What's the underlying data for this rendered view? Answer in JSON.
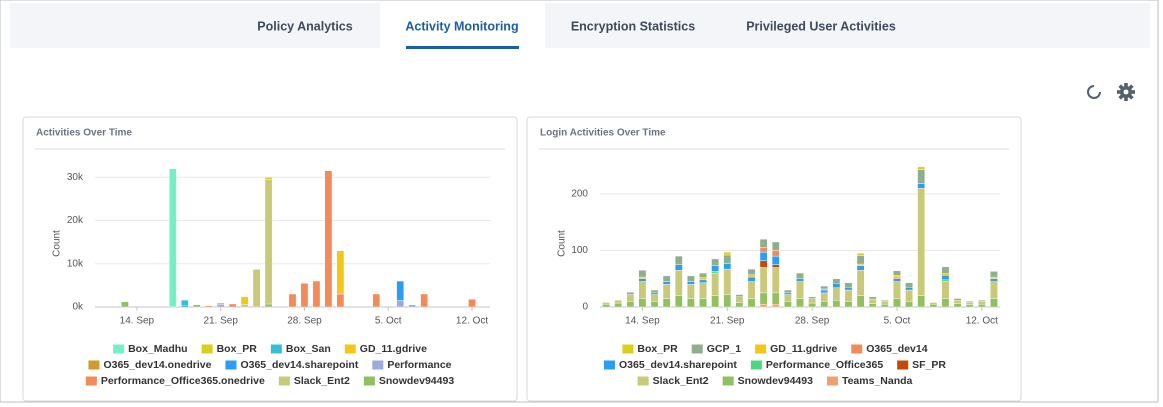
{
  "tabs": [
    "Policy Analytics",
    "Activity Monitoring",
    "Encryption Statistics",
    "Privileged User Activities"
  ],
  "chart_data": [
    {
      "type": "stacked-bar",
      "title": "Activities Over Time",
      "y_label": "Count",
      "categories": [
        null,
        null,
        null,
        "14. Sep",
        null,
        null,
        null,
        null,
        null,
        null,
        "21. Sep",
        null,
        null,
        null,
        null,
        null,
        null,
        "28. Sep",
        null,
        null,
        null,
        null,
        null,
        null,
        "5. Oct",
        null,
        null,
        null,
        null,
        null,
        null,
        "12. Oct",
        null
      ],
      "ylim": [
        0,
        34000
      ],
      "yticks": [
        {
          "value": 0,
          "label": "0k"
        },
        {
          "value": 10000,
          "label": "10k"
        },
        {
          "value": 20000,
          "label": "20k"
        },
        {
          "value": 30000,
          "label": "30k"
        }
      ],
      "grid": true,
      "series": [
        {
          "name": "Box_Madhu",
          "color": "#74f0c4",
          "values": [
            null,
            null,
            null,
            null,
            null,
            null,
            32000,
            null,
            null,
            null,
            null,
            null,
            null,
            null,
            null,
            null,
            null,
            null,
            null,
            null,
            null,
            null,
            null,
            null,
            null,
            null,
            null,
            null,
            null,
            null,
            null,
            null,
            null
          ]
        },
        {
          "name": "Box_PR",
          "color": "#dccf1a",
          "values": [
            null,
            null,
            null,
            null,
            null,
            null,
            null,
            null,
            null,
            null,
            null,
            null,
            null,
            null,
            500,
            null,
            null,
            null,
            null,
            null,
            null,
            null,
            null,
            null,
            null,
            null,
            null,
            null,
            null,
            null,
            null,
            null,
            null
          ]
        },
        {
          "name": "Box_San",
          "color": "#33bfd6",
          "values": [
            null,
            null,
            null,
            null,
            null,
            null,
            null,
            1200,
            null,
            null,
            null,
            null,
            null,
            null,
            null,
            null,
            null,
            null,
            null,
            null,
            null,
            null,
            null,
            null,
            null,
            null,
            null,
            null,
            null,
            null,
            null,
            null,
            null
          ]
        },
        {
          "name": "GD_11.gdrive",
          "color": "#f5c518",
          "values": [
            null,
            null,
            null,
            null,
            null,
            null,
            null,
            null,
            null,
            null,
            null,
            null,
            1800,
            null,
            null,
            null,
            null,
            null,
            null,
            null,
            10000,
            null,
            null,
            null,
            null,
            null,
            null,
            null,
            null,
            null,
            null,
            null,
            null
          ]
        },
        {
          "name": "O365_dev14.onedrive",
          "color": "#d29a2e",
          "values": [
            null,
            null,
            null,
            null,
            null,
            null,
            null,
            null,
            null,
            null,
            300,
            null,
            null,
            null,
            null,
            null,
            null,
            null,
            null,
            null,
            null,
            null,
            null,
            null,
            null,
            null,
            null,
            null,
            null,
            null,
            null,
            null,
            null
          ]
        },
        {
          "name": "O365_dev14.sharepoint",
          "color": "#2a9df4",
          "values": [
            null,
            null,
            null,
            null,
            null,
            null,
            null,
            400,
            null,
            null,
            null,
            null,
            null,
            null,
            null,
            null,
            null,
            null,
            null,
            null,
            null,
            null,
            null,
            null,
            null,
            4500,
            null,
            null,
            null,
            null,
            null,
            null,
            null
          ]
        },
        {
          "name": "Performance",
          "color": "#9cabd8",
          "values": [
            null,
            null,
            null,
            null,
            null,
            null,
            null,
            null,
            null,
            null,
            600,
            null,
            null,
            null,
            null,
            null,
            null,
            null,
            null,
            null,
            null,
            null,
            null,
            null,
            null,
            1500,
            500,
            null,
            null,
            null,
            null,
            null,
            null
          ]
        },
        {
          "name": "Performance_Office365.onedrive",
          "color": "#f28b59",
          "values": [
            null,
            null,
            null,
            null,
            null,
            null,
            null,
            null,
            null,
            300,
            null,
            700,
            null,
            null,
            null,
            null,
            3000,
            5500,
            6000,
            31500,
            3000,
            null,
            null,
            3000,
            null,
            null,
            null,
            3000,
            null,
            null,
            null,
            1800,
            null
          ]
        },
        {
          "name": "Slack_Ent2",
          "color": "#c9c97a",
          "values": [
            null,
            null,
            null,
            null,
            null,
            null,
            null,
            null,
            null,
            null,
            null,
            null,
            600,
            8700,
            28800,
            null,
            null,
            null,
            null,
            null,
            null,
            null,
            null,
            null,
            null,
            null,
            null,
            null,
            null,
            null,
            null,
            null,
            null
          ]
        },
        {
          "name": "Snowdev94493",
          "color": "#91c060",
          "values": [
            null,
            null,
            1200,
            null,
            null,
            null,
            null,
            null,
            500,
            null,
            null,
            null,
            null,
            null,
            700,
            null,
            null,
            null,
            null,
            null,
            null,
            null,
            null,
            null,
            null,
            null,
            null,
            null,
            null,
            null,
            null,
            null,
            null
          ]
        }
      ]
    },
    {
      "type": "stacked-bar",
      "title": "Login Activities Over Time",
      "y_label": "Count",
      "categories": [
        null,
        null,
        null,
        "14. Sep",
        null,
        null,
        null,
        null,
        null,
        null,
        "21. Sep",
        null,
        null,
        null,
        null,
        null,
        null,
        "28. Sep",
        null,
        null,
        null,
        null,
        null,
        null,
        "5. Oct",
        null,
        null,
        null,
        null,
        null,
        null,
        "12. Oct",
        null
      ],
      "ylim": [
        0,
        260
      ],
      "yticks": [
        0,
        100,
        200
      ],
      "grid": true,
      "series": [
        {
          "name": "Box_PR",
          "color": "#dccf1a",
          "values": [
            null,
            null,
            null,
            null,
            null,
            null,
            null,
            null,
            null,
            null,
            5,
            null,
            null,
            null,
            null,
            null,
            null,
            null,
            null,
            null,
            null,
            4,
            null,
            null,
            null,
            null,
            5,
            null,
            null,
            null,
            null,
            null,
            null
          ]
        },
        {
          "name": "GCP_1",
          "color": "#8fae8b",
          "values": [
            null,
            null,
            4,
            12,
            5,
            10,
            15,
            10,
            8,
            12,
            15,
            4,
            10,
            15,
            15,
            5,
            10,
            3,
            5,
            8,
            8,
            15,
            4,
            2,
            8,
            8,
            25,
            null,
            12,
            3,
            2,
            2,
            10
          ]
        },
        {
          "name": "GD_11.gdrive",
          "color": "#f5c518",
          "values": [
            null,
            null,
            null,
            3,
            null,
            null,
            null,
            null,
            4,
            null,
            null,
            null,
            4,
            null,
            null,
            null,
            null,
            null,
            null,
            null,
            null,
            3,
            null,
            null,
            3,
            null,
            null,
            null,
            3,
            null,
            null,
            null,
            3
          ]
        },
        {
          "name": "O365_dev14",
          "color": "#f28b59",
          "values": [
            null,
            null,
            null,
            null,
            null,
            null,
            null,
            null,
            null,
            null,
            null,
            null,
            null,
            8,
            10,
            null,
            null,
            null,
            2,
            null,
            null,
            null,
            null,
            null,
            3,
            null,
            null,
            null,
            null,
            null,
            null,
            null,
            null
          ]
        },
        {
          "name": "O365_dev14.sharepoint",
          "color": "#2a9df4",
          "values": [
            null,
            null,
            null,
            5,
            3,
            5,
            10,
            5,
            5,
            10,
            10,
            null,
            8,
            15,
            15,
            3,
            5,
            null,
            5,
            8,
            5,
            8,
            null,
            null,
            5,
            5,
            8,
            null,
            8,
            null,
            null,
            null,
            5
          ]
        },
        {
          "name": "Performance_Office365",
          "color": "#4cd683",
          "values": [
            null,
            null,
            null,
            null,
            null,
            null,
            null,
            null,
            null,
            3,
            null,
            null,
            null,
            null,
            null,
            null,
            null,
            null,
            null,
            null,
            null,
            null,
            null,
            null,
            null,
            null,
            null,
            null,
            3,
            null,
            null,
            null,
            null
          ]
        },
        {
          "name": "SF_PR",
          "color": "#c4480b",
          "values": [
            null,
            null,
            null,
            null,
            null,
            null,
            null,
            null,
            null,
            null,
            null,
            null,
            null,
            12,
            5,
            null,
            null,
            null,
            null,
            null,
            null,
            null,
            null,
            null,
            null,
            null,
            null,
            null,
            null,
            null,
            null,
            null,
            null
          ]
        },
        {
          "name": "Slack_Ent2",
          "color": "#c9c97a",
          "values": [
            3,
            5,
            12,
            30,
            12,
            25,
            45,
            25,
            28,
            40,
            45,
            10,
            30,
            45,
            45,
            12,
            30,
            8,
            15,
            22,
            20,
            45,
            8,
            5,
            30,
            20,
            190,
            3,
            30,
            6,
            4,
            5,
            30
          ]
        },
        {
          "name": "Snowdev94493",
          "color": "#91c060",
          "values": [
            5,
            7,
            10,
            15,
            10,
            15,
            20,
            15,
            15,
            20,
            22,
            8,
            15,
            20,
            20,
            10,
            15,
            7,
            10,
            12,
            10,
            20,
            6,
            5,
            15,
            10,
            20,
            5,
            15,
            6,
            4,
            5,
            15
          ]
        },
        {
          "name": "Teams_Nanda",
          "color": "#f0a070",
          "values": [
            null,
            null,
            null,
            null,
            null,
            null,
            null,
            null,
            null,
            null,
            null,
            null,
            null,
            5,
            5,
            null,
            null,
            null,
            null,
            null,
            null,
            null,
            null,
            null,
            null,
            null,
            null,
            null,
            null,
            null,
            null,
            null,
            null
          ]
        }
      ]
    }
  ]
}
